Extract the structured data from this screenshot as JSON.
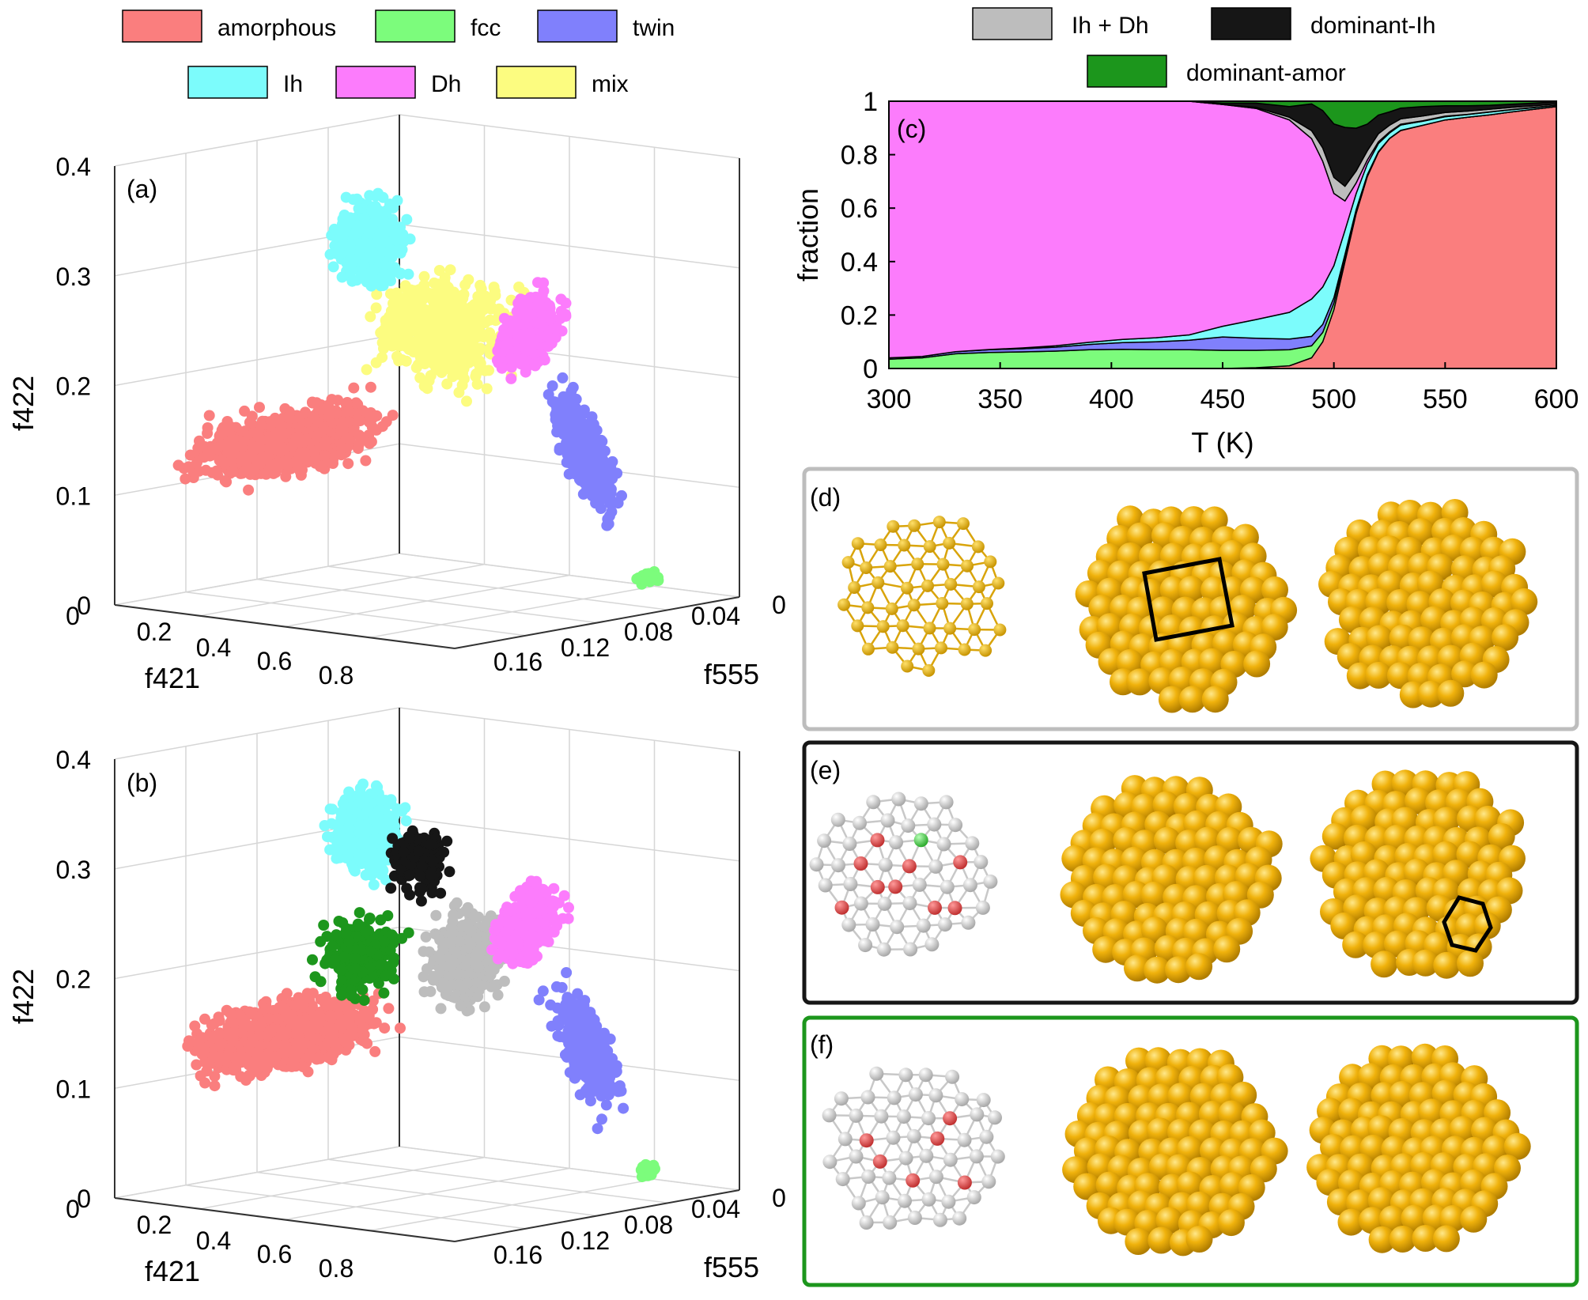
{
  "colors": {
    "amorphous": "#fa7e7e",
    "fcc": "#7cfc7c",
    "twin": "#8080fc",
    "Ih": "#7cfcfc",
    "Dh": "#fc7cfc",
    "mix": "#fcfc80",
    "ih_dh": "#bdbdbd",
    "dominant_ih": "#161616",
    "dominant_amor": "#1c961c",
    "gold": "#f0b20c",
    "gold_dark": "#b07d00",
    "frame_d": "#bdbdbd",
    "frame_e": "#161616",
    "frame_f": "#1c961c"
  },
  "legend_left": [
    {
      "key": "amorphous",
      "label": "amorphous"
    },
    {
      "key": "fcc",
      "label": "fcc"
    },
    {
      "key": "twin",
      "label": "twin"
    },
    {
      "key": "Ih",
      "label": "Ih"
    },
    {
      "key": "Dh",
      "label": "Dh"
    },
    {
      "key": "mix",
      "label": "mix"
    }
  ],
  "legend_right": [
    {
      "key": "ih_dh",
      "label": "Ih + Dh"
    },
    {
      "key": "dominant_ih",
      "label": "dominant-Ih"
    },
    {
      "key": "dominant_amor",
      "label": "dominant-amor"
    }
  ],
  "chart_data": [
    {
      "panel": "(a)",
      "type": "scatter",
      "projection": "3d",
      "xlabel": "f421",
      "ylabel": "f555",
      "zlabel": "f422",
      "x_ticks": [
        "0",
        "0.2",
        "0.4",
        "0.6",
        "0.8"
      ],
      "y_ticks": [
        "0.16",
        "0.12",
        "0.08",
        "0.04",
        "0"
      ],
      "z_ticks": [
        "0",
        "0.1",
        "0.2",
        "0.3",
        "0.4"
      ],
      "xlim": [
        0,
        0.9
      ],
      "ylim": [
        0,
        0.18
      ],
      "zlim": [
        0,
        0.4
      ],
      "clusters": [
        {
          "class": "amorphous",
          "f421": 0.2,
          "f555": 0.16,
          "f422": 0.14
        },
        {
          "class": "Ih",
          "f421": 0.12,
          "f555": 0.06,
          "f422": 0.33
        },
        {
          "class": "mix",
          "f421": 0.3,
          "f555": 0.05,
          "f422": 0.25
        },
        {
          "class": "Dh",
          "f421": 0.5,
          "f555": 0.02,
          "f422": 0.24
        },
        {
          "class": "twin",
          "f421": 0.7,
          "f555": 0.02,
          "f422": 0.12
        },
        {
          "class": "fcc",
          "f421": 0.85,
          "f555": 0.0,
          "f422": 0.01
        }
      ]
    },
    {
      "panel": "(b)",
      "type": "scatter",
      "projection": "3d",
      "xlabel": "f421",
      "ylabel": "f555",
      "zlabel": "f422",
      "x_ticks": [
        "0",
        "0.2",
        "0.4",
        "0.6",
        "0.8"
      ],
      "y_ticks": [
        "0.16",
        "0.12",
        "0.08",
        "0.04",
        "0"
      ],
      "z_ticks": [
        "0",
        "0.1",
        "0.2",
        "0.3",
        "0.4"
      ],
      "xlim": [
        0,
        0.9
      ],
      "ylim": [
        0,
        0.18
      ],
      "zlim": [
        0,
        0.4
      ],
      "clusters": [
        {
          "class": "amorphous",
          "f421": 0.2,
          "f555": 0.16,
          "f422": 0.14
        },
        {
          "class": "Ih",
          "f421": 0.12,
          "f555": 0.06,
          "f422": 0.33
        },
        {
          "class": "dominant_ih",
          "f421": 0.28,
          "f555": 0.05,
          "f422": 0.3
        },
        {
          "class": "dominant_amor",
          "f421": 0.22,
          "f555": 0.1,
          "f422": 0.22
        },
        {
          "class": "ih_dh",
          "f421": 0.38,
          "f555": 0.04,
          "f422": 0.22
        },
        {
          "class": "Dh",
          "f421": 0.5,
          "f555": 0.02,
          "f422": 0.24
        },
        {
          "class": "twin",
          "f421": 0.7,
          "f555": 0.02,
          "f422": 0.12
        },
        {
          "class": "fcc",
          "f421": 0.85,
          "f555": 0.0,
          "f422": 0.01
        }
      ]
    },
    {
      "panel": "(c)",
      "type": "area",
      "stacked": true,
      "xlabel": "T (K)",
      "ylabel": "fraction",
      "xlim": [
        300,
        600
      ],
      "ylim": [
        0,
        1
      ],
      "x_ticks": [
        "300",
        "350",
        "400",
        "450",
        "500",
        "550",
        "600"
      ],
      "y_ticks": [
        "0",
        "0.2",
        "0.4",
        "0.6",
        "0.8",
        "1"
      ],
      "x": [
        300,
        315,
        330,
        345,
        360,
        375,
        390,
        405,
        420,
        435,
        450,
        465,
        480,
        490,
        495,
        500,
        505,
        510,
        515,
        520,
        525,
        530,
        540,
        550,
        560,
        570,
        580,
        590,
        600
      ],
      "series": [
        {
          "name": "amorphous",
          "key": "amorphous",
          "values": [
            0,
            0,
            0,
            0,
            0,
            0,
            0,
            0,
            0,
            0,
            0,
            0.003,
            0.01,
            0.04,
            0.1,
            0.22,
            0.4,
            0.58,
            0.72,
            0.81,
            0.86,
            0.89,
            0.91,
            0.93,
            0.94,
            0.95,
            0.96,
            0.97,
            0.98
          ]
        },
        {
          "name": "fcc",
          "key": "fcc",
          "values": [
            0.035,
            0.04,
            0.055,
            0.06,
            0.062,
            0.065,
            0.07,
            0.072,
            0.07,
            0.07,
            0.068,
            0.065,
            0.06,
            0.045,
            0.035,
            0.025,
            0.015,
            0.008,
            0.004,
            0.002,
            0.001,
            0.001,
            0,
            0,
            0,
            0,
            0,
            0,
            0
          ]
        },
        {
          "name": "twin",
          "key": "twin",
          "values": [
            0.005,
            0.005,
            0.008,
            0.01,
            0.012,
            0.015,
            0.02,
            0.025,
            0.03,
            0.035,
            0.05,
            0.045,
            0.04,
            0.035,
            0.03,
            0.02,
            0.012,
            0.006,
            0.003,
            0.001,
            0,
            0,
            0,
            0,
            0,
            0,
            0,
            0,
            0
          ]
        },
        {
          "name": "Ih",
          "key": "Ih",
          "values": [
            0,
            0,
            0,
            0.001,
            0.003,
            0.005,
            0.008,
            0.012,
            0.015,
            0.02,
            0.04,
            0.07,
            0.1,
            0.14,
            0.14,
            0.12,
            0.09,
            0.06,
            0.04,
            0.03,
            0.02,
            0.02,
            0.015,
            0.012,
            0.01,
            0.01,
            0.008,
            0.006,
            0.005
          ]
        },
        {
          "name": "Dh",
          "key": "Dh",
          "values": [
            0.96,
            0.955,
            0.937,
            0.929,
            0.923,
            0.915,
            0.902,
            0.891,
            0.885,
            0.87,
            0.83,
            0.79,
            0.72,
            0.6,
            0.47,
            0.27,
            0.11,
            0.04,
            0.015,
            0.007,
            0.004,
            0.003,
            0.002,
            0.002,
            0.001,
            0.001,
            0.001,
            0.001,
            0
          ]
        },
        {
          "name": "Ih + Dh",
          "key": "ih_dh",
          "values": [
            0,
            0,
            0,
            0,
            0,
            0,
            0,
            0,
            0,
            0,
            0,
            0.004,
            0.01,
            0.03,
            0.05,
            0.06,
            0.055,
            0.045,
            0.035,
            0.03,
            0.025,
            0.02,
            0.018,
            0.014,
            0.012,
            0.01,
            0.008,
            0.006,
            0.005
          ]
        },
        {
          "name": "dominant-Ih",
          "key": "dominant_ih",
          "values": [
            0,
            0,
            0,
            0,
            0,
            0,
            0,
            0,
            0,
            0,
            0.005,
            0.016,
            0.04,
            0.1,
            0.14,
            0.2,
            0.22,
            0.16,
            0.1,
            0.07,
            0.05,
            0.04,
            0.035,
            0.025,
            0.02,
            0.015,
            0.012,
            0.01,
            0.008
          ]
        },
        {
          "name": "dominant-amor",
          "key": "dominant_amor",
          "values": [
            0,
            0,
            0,
            0,
            0,
            0,
            0,
            0,
            0,
            0,
            0.007,
            0.007,
            0.02,
            0.01,
            0.035,
            0.085,
            0.098,
            0.101,
            0.086,
            0.052,
            0.04,
            0.026,
            0.02,
            0.017,
            0.017,
            0.015,
            0.011,
            0.007,
            0.002
          ]
        }
      ]
    }
  ],
  "panels": {
    "a_label": "(a)",
    "b_label": "(b)",
    "c_label": "(c)",
    "d_label": "(d)",
    "e_label": "(e)",
    "f_label": "(f)"
  }
}
